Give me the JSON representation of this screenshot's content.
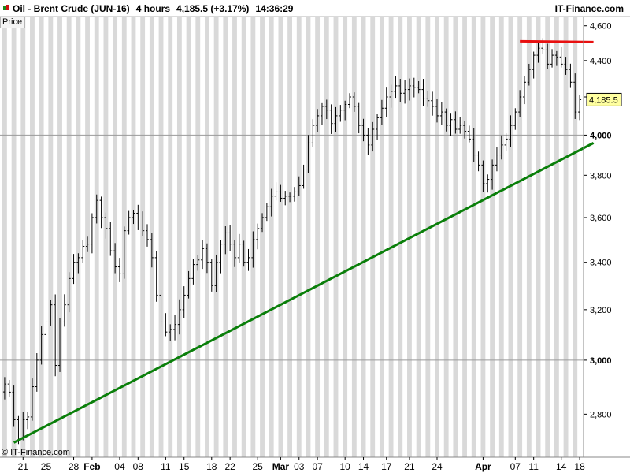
{
  "header": {
    "title_prefix": "Oil - Brent Crude (JUN-16)",
    "timeframe": "4 hours",
    "last_value": "4,185.5 (+3.17%)",
    "time": "14:36:29",
    "brand": "IT-Finance.com"
  },
  "price_tab_label": "Price",
  "copyright": "© IT-Finance.com",
  "price_label": "4,185.5",
  "colors": {
    "background": "#ffffff",
    "band_gray": "#d9d9d9",
    "candle": "#000000",
    "support_line": "#0a7f0a",
    "resistance_line": "#e81010",
    "axis_line": "#888888",
    "price_label_bg": "#ffffa0"
  },
  "chart_data": {
    "type": "line",
    "title": "Oil - Brent Crude (JUN-16)",
    "xlabel": "",
    "ylabel": "",
    "log_scale": true,
    "ylim": [
      2650,
      4650
    ],
    "yticks": [
      {
        "value": 2800,
        "label": "2,800"
      },
      {
        "value": 3000,
        "label": "3,000",
        "bold": true
      },
      {
        "value": 3200,
        "label": "3,200"
      },
      {
        "value": 3400,
        "label": "3,400"
      },
      {
        "value": 3600,
        "label": "3,600"
      },
      {
        "value": 3800,
        "label": "3,800"
      },
      {
        "value": 4000,
        "label": "4,000",
        "bold": true
      },
      {
        "value": 4200,
        "label": "4,200"
      },
      {
        "value": 4400,
        "label": "4,400"
      },
      {
        "value": 4600,
        "label": "4,600"
      }
    ],
    "xticks": [
      {
        "label": "21",
        "idx": 4
      },
      {
        "label": "25",
        "idx": 9
      },
      {
        "label": "28",
        "idx": 15
      },
      {
        "label": "Feb",
        "idx": 19,
        "bold": true
      },
      {
        "label": "04",
        "idx": 25
      },
      {
        "label": "08",
        "idx": 29
      },
      {
        "label": "11",
        "idx": 35
      },
      {
        "label": "15",
        "idx": 39
      },
      {
        "label": "18",
        "idx": 45
      },
      {
        "label": "22",
        "idx": 49
      },
      {
        "label": "25",
        "idx": 55
      },
      {
        "label": "Mar",
        "idx": 60,
        "bold": true
      },
      {
        "label": "03",
        "idx": 64
      },
      {
        "label": "07",
        "idx": 68
      },
      {
        "label": "10",
        "idx": 74
      },
      {
        "label": "14",
        "idx": 78
      },
      {
        "label": "17",
        "idx": 83
      },
      {
        "label": "21",
        "idx": 88
      },
      {
        "label": "24",
        "idx": 94
      },
      {
        "label": "Apr",
        "idx": 104,
        "bold": true
      },
      {
        "label": "07",
        "idx": 111
      },
      {
        "label": "11",
        "idx": 115
      },
      {
        "label": "14",
        "idx": 121
      },
      {
        "label": "18",
        "idx": 125
      }
    ],
    "series": [
      {
        "close": [
          2910,
          2880,
          2780,
          2730,
          2780,
          2790,
          2900,
          3000,
          3100,
          3150,
          3220,
          2980,
          3150,
          3220,
          3330,
          3400,
          3420,
          3470,
          3480,
          3600,
          3680,
          3600,
          3550,
          3450,
          3380,
          3350,
          3540,
          3600,
          3620,
          3580,
          3540,
          3500,
          3420,
          3260,
          3150,
          3110,
          3120,
          3140,
          3200,
          3260,
          3330,
          3390,
          3410,
          3460,
          3400,
          3300,
          3400,
          3480,
          3530,
          3480,
          3420,
          3480,
          3400,
          3420,
          3500,
          3550,
          3600,
          3650,
          3700,
          3720,
          3690,
          3700,
          3700,
          3720,
          3750,
          3830,
          3960,
          4050,
          4100,
          4150,
          4130,
          4060,
          4100,
          4130,
          4160,
          4200,
          4150,
          4050,
          4000,
          3950,
          4030,
          4090,
          4140,
          4200,
          4230,
          4260,
          4220,
          4240,
          4260,
          4250,
          4240,
          4190,
          4180,
          4150,
          4100,
          4120,
          4050,
          4080,
          4030,
          4050,
          4020,
          3980,
          3900,
          3850,
          3760,
          3780,
          3850,
          3900,
          3950,
          3980,
          4050,
          4120,
          4200,
          4280,
          4350,
          4430,
          4470,
          4460,
          4380,
          4430,
          4420,
          4380,
          4350,
          4280,
          4120,
          4185.5
        ],
        "high": null
      }
    ],
    "support_line": {
      "from": {
        "idx": 2,
        "value": 2700
      },
      "to": {
        "idx": 128,
        "value": 3960
      }
    },
    "resistance_line": {
      "from": {
        "idx": 112,
        "value": 4510
      },
      "to": {
        "idx": 128,
        "value": 4505
      }
    }
  }
}
